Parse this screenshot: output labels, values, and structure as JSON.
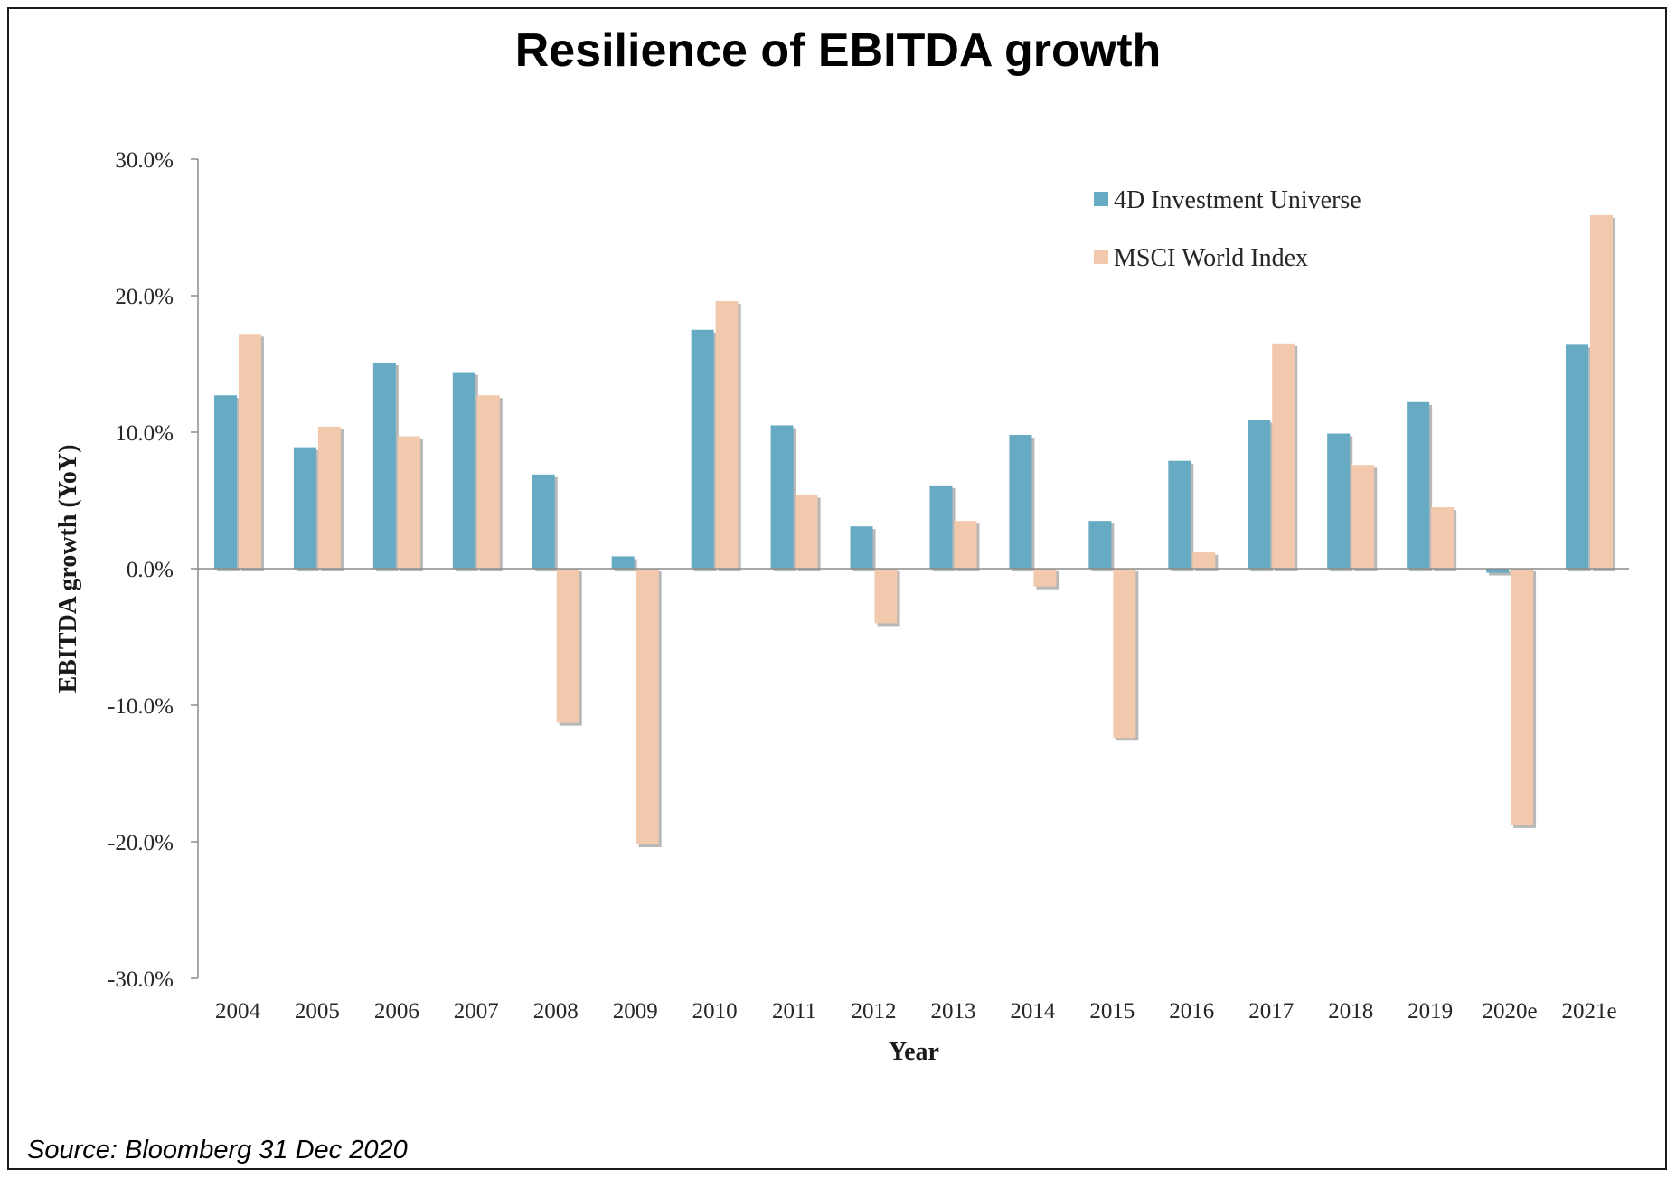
{
  "title": "Resilience of EBITDA growth",
  "source": "Source: Bloomberg 31 Dec 2020",
  "colors": {
    "series1": "#66aac4",
    "series2": "#f2c9ac",
    "axis": "#8c8c8c"
  },
  "chart_data": {
    "type": "bar",
    "title": "Resilience of EBITDA growth",
    "xlabel": "Year",
    "ylabel": "EBITDA growth (YoY)",
    "ylim": [
      -30,
      30
    ],
    "yticks": [
      30,
      20,
      10,
      0,
      -10,
      -20,
      -30
    ],
    "ytick_labels": [
      "30.0%",
      "20.0%",
      "10.0%",
      "0.0%",
      "-10.0%",
      "-20.0%",
      "-30.0%"
    ],
    "grid": false,
    "legend_position": "top-right",
    "categories": [
      "2004",
      "2005",
      "2006",
      "2007",
      "2008",
      "2009",
      "2010",
      "2011",
      "2012",
      "2013",
      "2014",
      "2015",
      "2016",
      "2017",
      "2018",
      "2019",
      "2020e",
      "2021e"
    ],
    "series": [
      {
        "name": "4D Investment Universe",
        "values": [
          12.7,
          8.9,
          15.1,
          14.4,
          6.9,
          0.9,
          17.5,
          10.5,
          3.1,
          6.1,
          9.8,
          3.5,
          7.9,
          10.9,
          9.9,
          12.2,
          -0.3,
          16.4
        ]
      },
      {
        "name": "MSCI World Index",
        "values": [
          17.2,
          10.4,
          9.7,
          12.7,
          -11.3,
          -20.2,
          19.6,
          5.4,
          -4.0,
          3.5,
          -1.3,
          -12.4,
          1.2,
          16.5,
          7.6,
          4.5,
          -18.8,
          25.9
        ]
      }
    ]
  }
}
